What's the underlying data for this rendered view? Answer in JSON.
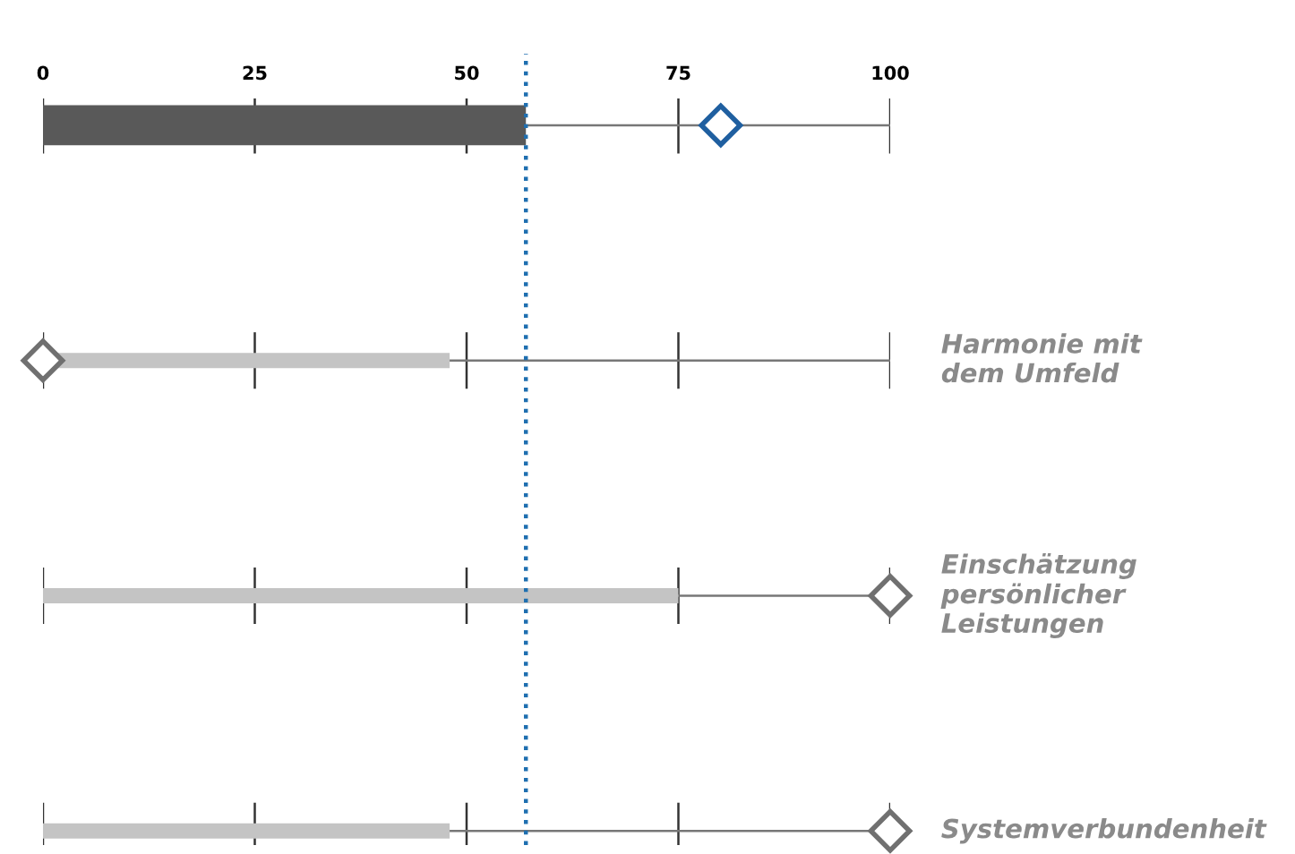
{
  "chart_data": {
    "type": "bar",
    "orientation": "horizontal",
    "categories": [
      null,
      "Harmonie mit\ndem Umfeld",
      "Einschätzung\npersönlicher\nLeistungen",
      "Systemverbundenheit"
    ],
    "series": [
      {
        "colors": [
          "#595959",
          "#c4c4c4",
          "#c4c4c4",
          "#c4c4c4"
        ],
        "values": [
          57,
          48,
          75,
          48
        ]
      },
      {
        "type": "scatter",
        "marker": "diamond",
        "colors": [
          "#1f5fa0",
          "#707070",
          "#707070",
          "#707070"
        ],
        "values": [
          80,
          0,
          100,
          100
        ]
      }
    ],
    "xlim": [
      0,
      100
    ],
    "xticks": [
      0,
      25,
      50,
      75,
      100
    ],
    "tick_labels": "x",
    "grid": true,
    "legend": false,
    "ref_lines": [
      {
        "axis": "x",
        "value": 57,
        "color": "#1f6fb0",
        "line_style": "dotted"
      }
    ]
  }
}
